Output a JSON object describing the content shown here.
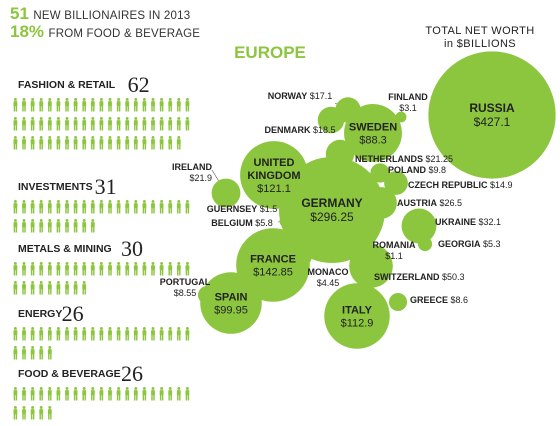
{
  "header": {
    "line1_number": "51",
    "line1_text": "NEW BILLIONAIRES IN 2013",
    "line2_number": "18%",
    "line2_text": "FROM FOOD & BEVERAGE"
  },
  "colors": {
    "accent": "#8cc63f",
    "text": "#222222",
    "leader": "#555555"
  },
  "chart_data": [
    {
      "type": "pictograph",
      "unit": "person-icon",
      "categories": [
        "FASHION & RETAIL",
        "INVESTMENTS",
        "METALS & MINING",
        "ENERGY",
        "FOOD & BEVERAGE"
      ],
      "values": [
        62,
        31,
        30,
        26,
        26
      ]
    },
    {
      "type": "bubble",
      "title": "EUROPE",
      "legend": "TOTAL NET WORTH\nin $BILLIONS",
      "points": [
        {
          "country": "RUSSIA",
          "value": 427.1,
          "label": "$427.1"
        },
        {
          "country": "GERMANY",
          "value": 296.25,
          "label": "$296.25"
        },
        {
          "country": "FRANCE",
          "value": 142.85,
          "label": "$142.85"
        },
        {
          "country": "UNITED KINGDOM",
          "value": 121.1,
          "label": "$121.1"
        },
        {
          "country": "ITALY",
          "value": 112.9,
          "label": "$112.9"
        },
        {
          "country": "SPAIN",
          "value": 99.95,
          "label": "$99.95"
        },
        {
          "country": "SWEDEN",
          "value": 88.3,
          "label": "$88.3"
        },
        {
          "country": "SWITZERLAND",
          "value": 50.3,
          "label": "$50.3"
        },
        {
          "country": "UKRAINE",
          "value": 32.1,
          "label": "$32.1"
        },
        {
          "country": "AUSTRIA",
          "value": 26.5,
          "label": "$26.5"
        },
        {
          "country": "IRELAND",
          "value": 21.9,
          "label": "$21.9"
        },
        {
          "country": "NETHERLANDS",
          "value": 21.25,
          "label": "$21.25"
        },
        {
          "country": "DENMARK",
          "value": 18.5,
          "label": "$18.5"
        },
        {
          "country": "NORWAY",
          "value": 17.1,
          "label": "$17.1"
        },
        {
          "country": "CZECH REPUBLIC",
          "value": 14.9,
          "label": "$14.9"
        },
        {
          "country": "POLAND",
          "value": 9.8,
          "label": "$9.8"
        },
        {
          "country": "GREECE",
          "value": 8.6,
          "label": "$8.6"
        },
        {
          "country": "PORTUGAL",
          "value": 8.55,
          "label": "$8.55"
        },
        {
          "country": "BELGIUM",
          "value": 5.8,
          "label": "$5.8"
        },
        {
          "country": "GEORGIA",
          "value": 5.3,
          "label": "$5.3"
        },
        {
          "country": "MONACO",
          "value": 4.45,
          "label": "$4.45"
        },
        {
          "country": "FINLAND",
          "value": 3.1,
          "label": "$3.1"
        },
        {
          "country": "GUERNSEY",
          "value": 1.5,
          "label": "$1.5"
        },
        {
          "country": "ROMANIA",
          "value": 1.1,
          "label": "$1.1"
        }
      ]
    }
  ]
}
